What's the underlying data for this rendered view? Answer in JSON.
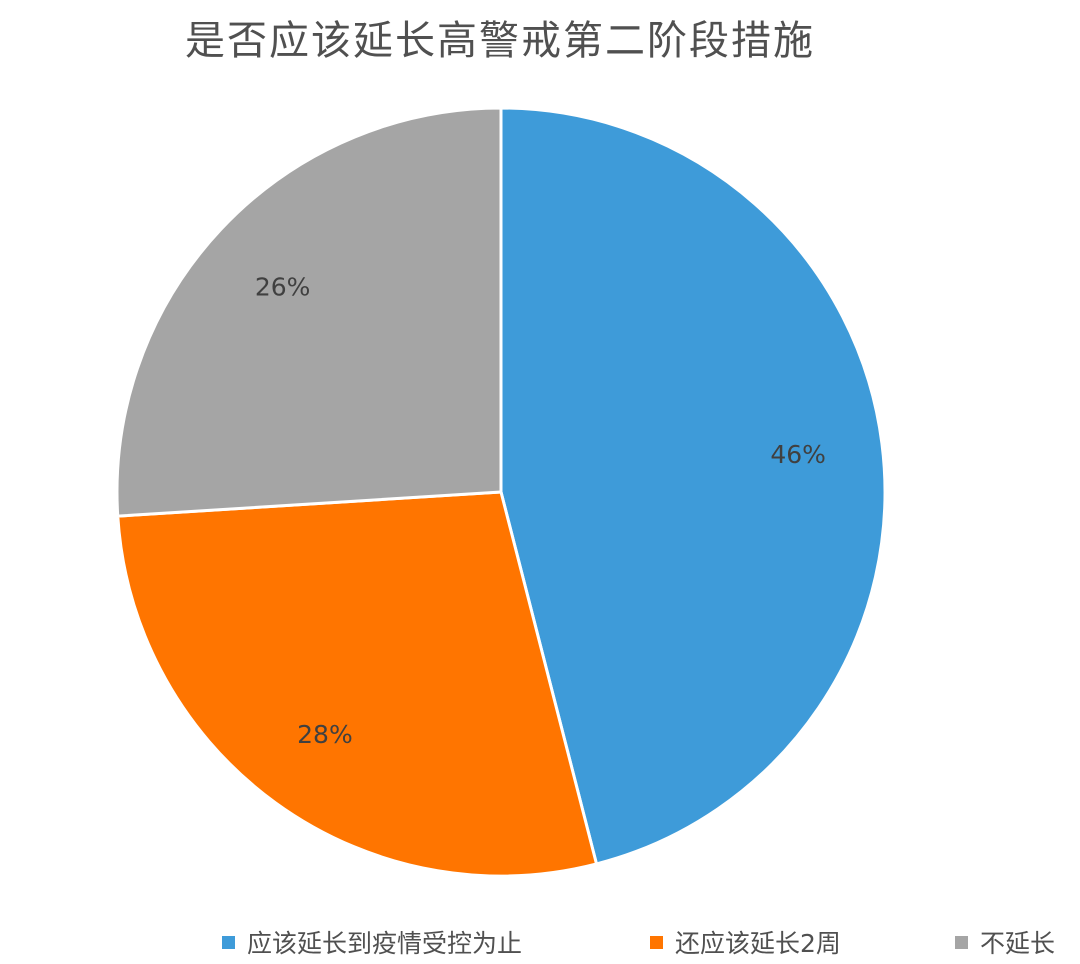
{
  "chart_data": {
    "type": "pie",
    "title": "是否应该延长高警戒第二阶段措施",
    "series": [
      {
        "name": "应该延长到疫情受控为止",
        "value": 46,
        "label": "46%",
        "color": "#3E9BD9"
      },
      {
        "name": "还应该延长2周",
        "value": 28,
        "label": "28%",
        "color": "#FF7500"
      },
      {
        "name": "不延长",
        "value": 26,
        "label": "26%",
        "color": "#A5A5A5"
      }
    ],
    "legend_position": "bottom",
    "start_angle": "12 o'clock",
    "direction": "clockwise"
  }
}
